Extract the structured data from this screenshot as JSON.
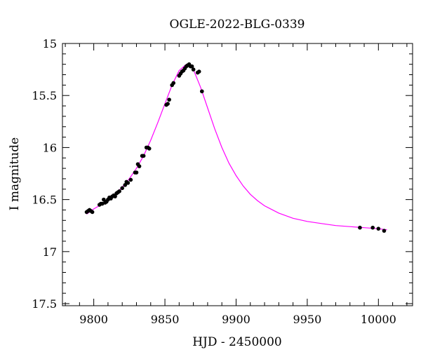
{
  "chart_data": {
    "type": "scatter",
    "title": "OGLE-2022-BLG-0339",
    "xlabel": "HJD - 2450000",
    "ylabel": "I magnitude",
    "xlim": [
      9778,
      10024
    ],
    "ylim": [
      17.52,
      15.0
    ],
    "y_inverted": true,
    "x_ticks": [
      9800,
      9850,
      9900,
      9950,
      10000
    ],
    "y_ticks": [
      15,
      15.5,
      16,
      16.5,
      17,
      17.5
    ],
    "x_tick_labels": [
      "9800",
      "9850",
      "9900",
      "9950",
      "10000"
    ],
    "y_tick_labels": [
      "15",
      "15.5",
      "16",
      "16.5",
      "17",
      "17.5"
    ],
    "grid": false,
    "legend": "none",
    "colors": {
      "data": "#000000",
      "model": "#ff00ff"
    },
    "series": [
      {
        "kind": "observations",
        "x": [
          9795,
          9796,
          9797,
          9798,
          9799,
          9804,
          9805,
          9806,
          9807,
          9808,
          9809,
          9810,
          9811,
          9812,
          9813,
          9814,
          9815,
          9816,
          9817,
          9818,
          9820,
          9822,
          9823,
          9824,
          9826,
          9829,
          9830,
          9831,
          9832,
          9834,
          9835,
          9837,
          9838,
          9839,
          9851,
          9852,
          9853,
          9855,
          9856,
          9860,
          9861,
          9862,
          9863,
          9864,
          9865,
          9866,
          9867,
          9868,
          9869,
          9870,
          9873,
          9874,
          9876,
          9987,
          9996,
          10000,
          10004
        ],
        "y": [
          16.62,
          16.61,
          16.6,
          16.61,
          16.62,
          16.55,
          16.54,
          16.54,
          16.5,
          16.53,
          16.52,
          16.5,
          16.48,
          16.49,
          16.47,
          16.46,
          16.47,
          16.44,
          16.43,
          16.42,
          16.39,
          16.36,
          16.33,
          16.34,
          16.31,
          16.24,
          16.24,
          16.16,
          16.18,
          16.08,
          16.08,
          16.0,
          16.0,
          16.01,
          15.59,
          15.58,
          15.54,
          15.4,
          15.38,
          15.31,
          15.29,
          15.27,
          15.26,
          15.24,
          15.22,
          15.21,
          15.2,
          15.22,
          15.22,
          15.25,
          15.28,
          15.27,
          15.46,
          16.77,
          16.77,
          16.78,
          16.8
        ]
      },
      {
        "kind": "model",
        "x": [
          9795,
          9800,
          9805,
          9810,
          9815,
          9820,
          9825,
          9830,
          9835,
          9840,
          9845,
          9850,
          9855,
          9860,
          9865,
          9867,
          9870,
          9875,
          9880,
          9885,
          9890,
          9895,
          9900,
          9905,
          9910,
          9915,
          9920,
          9930,
          9940,
          9950,
          9960,
          9970,
          9980,
          9990,
          10000,
          10006
        ],
        "y": [
          16.64,
          16.59,
          16.55,
          16.5,
          16.45,
          16.38,
          16.3,
          16.2,
          16.08,
          15.93,
          15.76,
          15.58,
          15.4,
          15.26,
          15.2,
          15.2,
          15.25,
          15.42,
          15.62,
          15.82,
          16.0,
          16.15,
          16.27,
          16.37,
          16.45,
          16.51,
          16.56,
          16.63,
          16.68,
          16.71,
          16.73,
          16.75,
          16.76,
          16.77,
          16.78,
          16.79
        ]
      }
    ]
  }
}
